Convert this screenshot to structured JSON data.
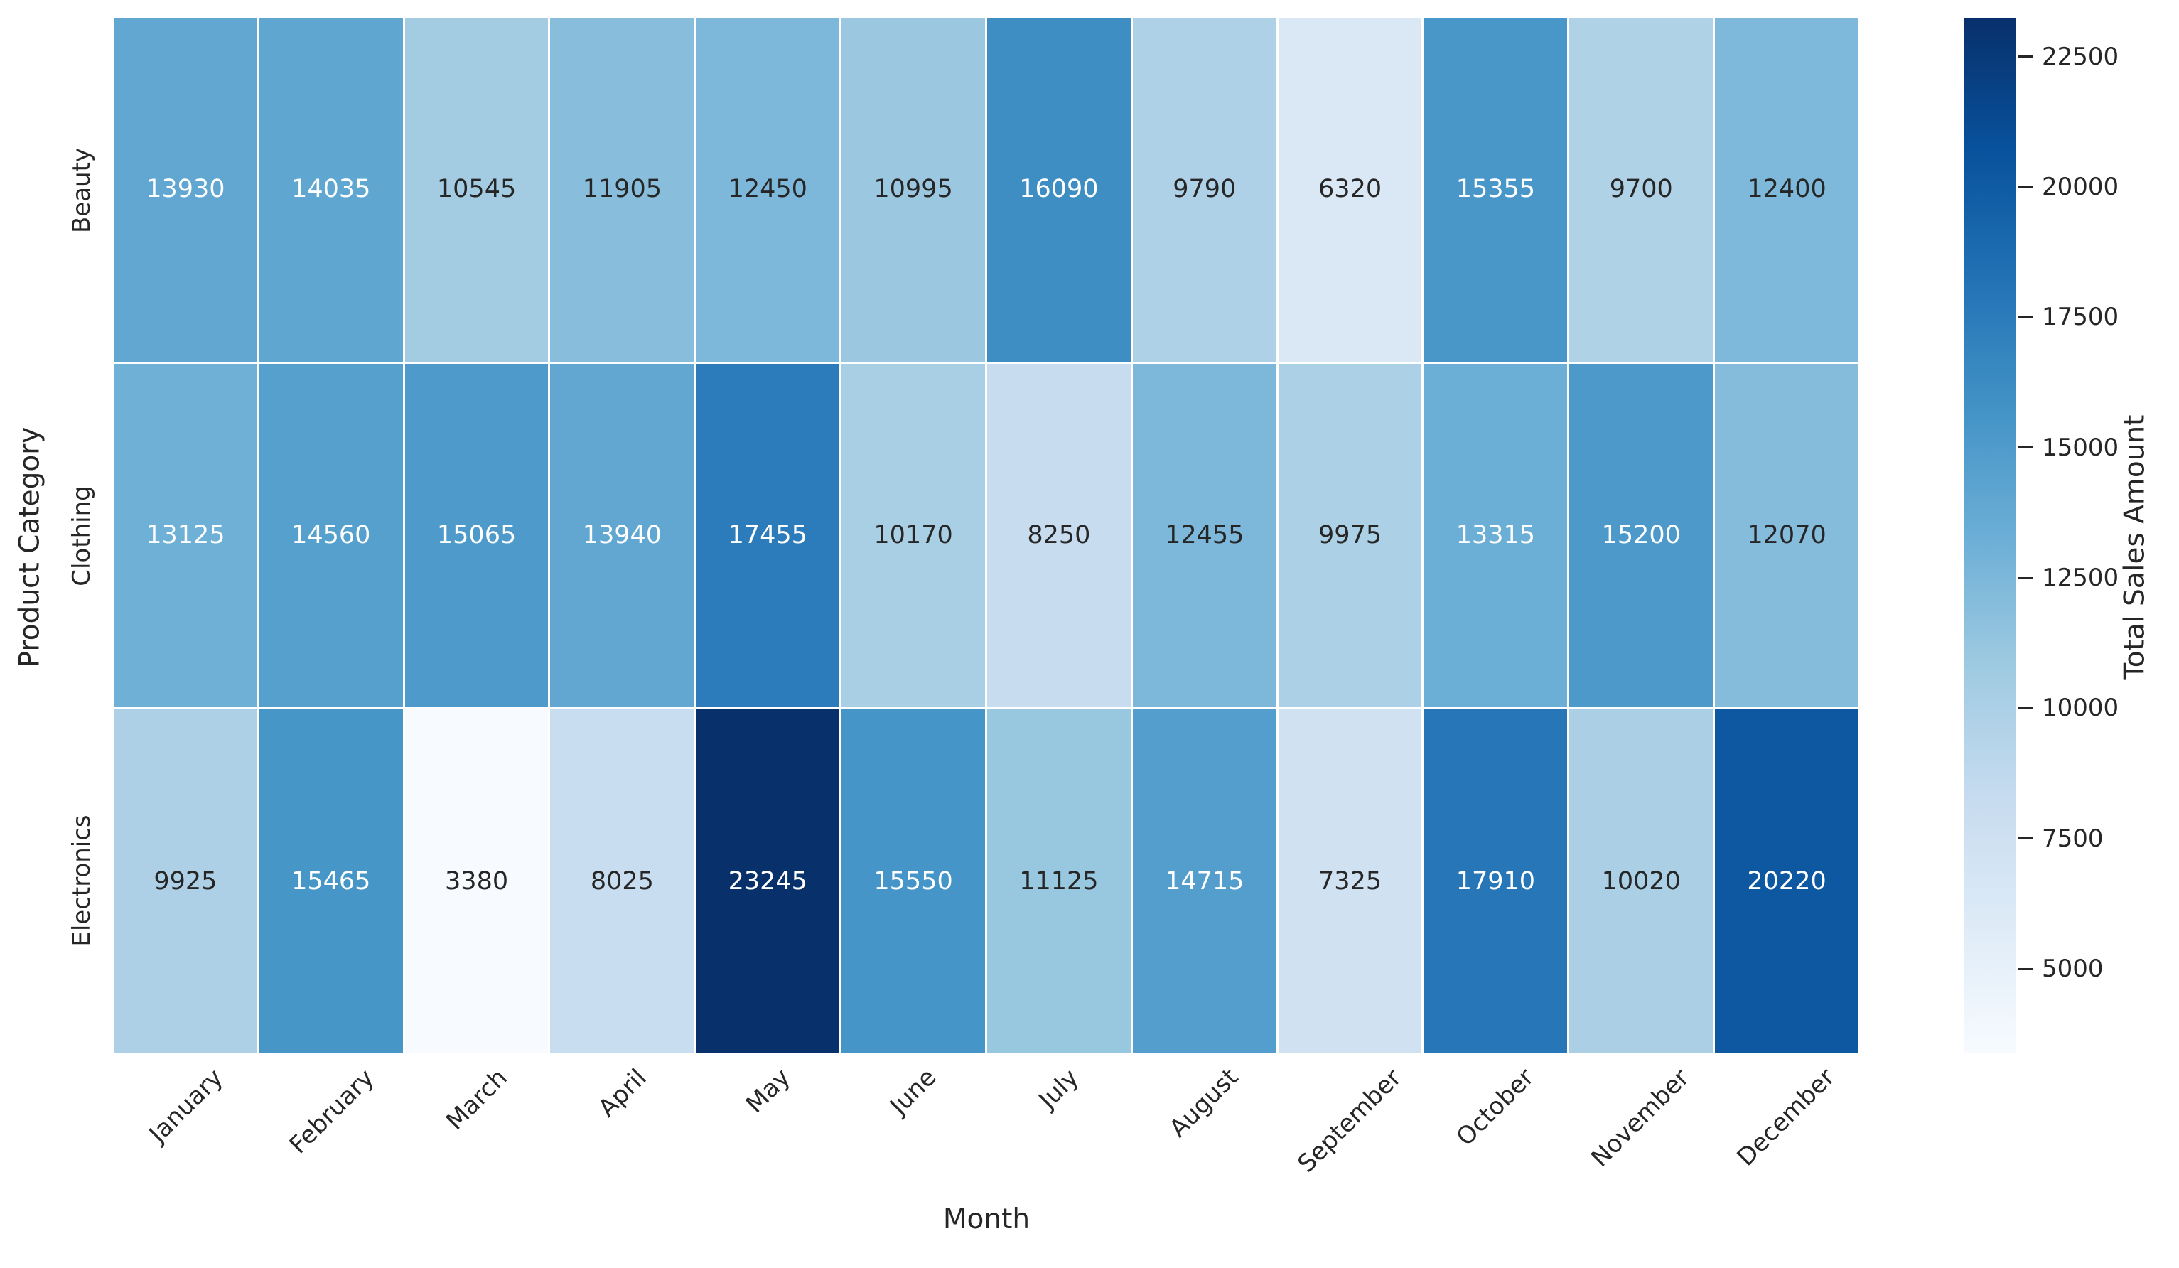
{
  "chart_data": {
    "type": "heatmap",
    "title": "",
    "xlabel": "Month",
    "ylabel": "Product Category",
    "x_categories": [
      "January",
      "February",
      "March",
      "April",
      "May",
      "June",
      "July",
      "August",
      "September",
      "October",
      "November",
      "December"
    ],
    "y_categories": [
      "Beauty",
      "Clothing",
      "Electronics"
    ],
    "values": [
      [
        13930,
        14035,
        10545,
        11905,
        12450,
        10995,
        16090,
        9790,
        6320,
        15355,
        9700,
        12400
      ],
      [
        13125,
        14560,
        15065,
        13940,
        17455,
        10170,
        8250,
        12455,
        9975,
        13315,
        15200,
        12070
      ],
      [
        9925,
        15465,
        3380,
        8025,
        23245,
        15550,
        11125,
        14715,
        7325,
        17910,
        10020,
        20220
      ]
    ],
    "vmin": 3380,
    "vmax": 23245,
    "annotations_shown": true,
    "grid_line_color": "#ffffff",
    "background": "#ffffff",
    "text_colors": {
      "dark": "#262626",
      "light": "#ffffff"
    },
    "colorbar": {
      "label": "Total Sales Amount",
      "ticks": [
        22500,
        20000,
        17500,
        15000,
        12500,
        10000,
        7500,
        5000
      ],
      "colormap": "Blues",
      "gradient_stops": [
        "#f7fbff",
        "#deebf7",
        "#c6dbef",
        "#9ecae1",
        "#6baed6",
        "#4292c6",
        "#2171b5",
        "#08519c",
        "#08306b"
      ]
    }
  }
}
